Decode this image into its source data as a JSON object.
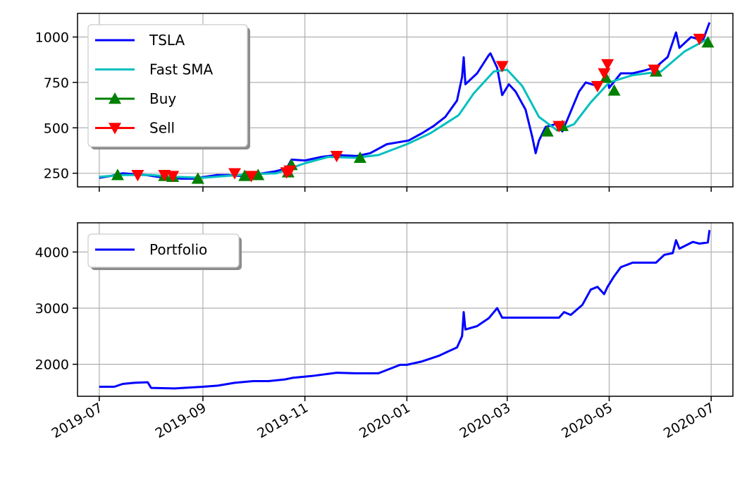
{
  "chart_data": [
    {
      "type": "line",
      "x_type": "date",
      "xlim": [
        "2019-06-18",
        "2020-07-14"
      ],
      "ylim": [
        175,
        1130
      ],
      "yticks": [
        250,
        500,
        750,
        1000
      ],
      "grid": true,
      "legend": "upper-left",
      "series": [
        {
          "name": "TSLA",
          "color": "#0000ff",
          "style": "line",
          "x": [
            "2019-07-01",
            "2019-07-08",
            "2019-07-15",
            "2019-07-22",
            "2019-07-29",
            "2019-08-05",
            "2019-08-12",
            "2019-08-19",
            "2019-08-26",
            "2019-09-02",
            "2019-09-09",
            "2019-09-16",
            "2019-09-23",
            "2019-09-30",
            "2019-10-07",
            "2019-10-14",
            "2019-10-21",
            "2019-10-24",
            "2019-11-01",
            "2019-11-11",
            "2019-11-20",
            "2019-12-02",
            "2019-12-10",
            "2019-12-20",
            "2020-01-02",
            "2020-01-10",
            "2020-01-17",
            "2020-01-24",
            "2020-01-31",
            "2020-02-03",
            "2020-02-04",
            "2020-02-05",
            "2020-02-12",
            "2020-02-19",
            "2020-02-20",
            "2020-02-24",
            "2020-02-27",
            "2020-03-02",
            "2020-03-06",
            "2020-03-12",
            "2020-03-16",
            "2020-03-18",
            "2020-03-20",
            "2020-03-24",
            "2020-03-30",
            "2020-04-03",
            "2020-04-06",
            "2020-04-13",
            "2020-04-17",
            "2020-04-24",
            "2020-04-30",
            "2020-05-01",
            "2020-05-08",
            "2020-05-15",
            "2020-05-22",
            "2020-05-29",
            "2020-06-05",
            "2020-06-10",
            "2020-06-12",
            "2020-06-19",
            "2020-06-26",
            "2020-06-30"
          ],
          "values": [
            225,
            235,
            250,
            245,
            240,
            230,
            225,
            220,
            220,
            230,
            240,
            240,
            235,
            240,
            250,
            260,
            275,
            325,
            320,
            340,
            350,
            345,
            360,
            410,
            430,
            470,
            510,
            560,
            650,
            780,
            888,
            740,
            800,
            900,
            910,
            830,
            680,
            740,
            700,
            600,
            450,
            360,
            430,
            505,
            520,
            480,
            545,
            700,
            750,
            730,
            780,
            720,
            800,
            800,
            815,
            835,
            890,
            1025,
            940,
            1000,
            980,
            1080
          ]
        },
        {
          "name": "Fast SMA",
          "color": "#00bfbf",
          "style": "line",
          "x": [
            "2019-07-01",
            "2019-07-15",
            "2019-08-01",
            "2019-08-15",
            "2019-09-01",
            "2019-09-15",
            "2019-10-01",
            "2019-10-15",
            "2019-11-01",
            "2019-11-15",
            "2019-12-01",
            "2019-12-15",
            "2020-01-01",
            "2020-01-15",
            "2020-02-01",
            "2020-02-10",
            "2020-02-22",
            "2020-03-01",
            "2020-03-10",
            "2020-03-20",
            "2020-03-31",
            "2020-04-10",
            "2020-04-20",
            "2020-05-01",
            "2020-05-15",
            "2020-06-01",
            "2020-06-15",
            "2020-06-30"
          ],
          "values": [
            230,
            240,
            240,
            230,
            225,
            235,
            245,
            250,
            305,
            340,
            335,
            350,
            410,
            470,
            570,
            690,
            810,
            820,
            730,
            560,
            485,
            520,
            640,
            750,
            790,
            810,
            920,
            995
          ]
        },
        {
          "name": "Buy",
          "color": "#008000",
          "style": "marker-triangle-up",
          "x": [
            "2019-07-12",
            "2019-08-09",
            "2019-08-14",
            "2019-08-29",
            "2019-09-26",
            "2019-10-04",
            "2019-10-22",
            "2019-10-24",
            "2019-12-04",
            "2020-03-25",
            "2020-04-03",
            "2020-04-29",
            "2020-05-04",
            "2020-05-29",
            "2020-06-29"
          ],
          "values": [
            240,
            235,
            230,
            220,
            235,
            240,
            255,
            295,
            335,
            480,
            510,
            775,
            705,
            810,
            970
          ]
        },
        {
          "name": "Sell",
          "color": "#ff0000",
          "style": "marker-triangle-down",
          "x": [
            "2019-07-24",
            "2019-08-09",
            "2019-08-14",
            "2019-09-20",
            "2019-09-30",
            "2019-10-21",
            "2019-10-23",
            "2019-11-20",
            "2020-02-27",
            "2020-04-01",
            "2020-04-24",
            "2020-04-28",
            "2020-04-30",
            "2020-05-28",
            "2020-06-24"
          ],
          "values": [
            240,
            240,
            235,
            250,
            235,
            255,
            265,
            345,
            840,
            510,
            730,
            800,
            850,
            820,
            990
          ]
        }
      ]
    },
    {
      "type": "line",
      "x_type": "date",
      "xlim": [
        "2019-06-18",
        "2020-07-14"
      ],
      "ylim": [
        1430,
        4520
      ],
      "yticks": [
        2000,
        3000,
        4000
      ],
      "xticks": [
        "2019-07",
        "2019-09",
        "2019-11",
        "2020-01",
        "2020-03",
        "2020-05",
        "2020-07"
      ],
      "grid": true,
      "legend": "upper-left",
      "series": [
        {
          "name": "Portfolio",
          "color": "#0000ff",
          "style": "line",
          "x": [
            "2019-07-01",
            "2019-07-10",
            "2019-07-15",
            "2019-07-22",
            "2019-07-30",
            "2019-08-01",
            "2019-08-15",
            "2019-09-01",
            "2019-09-10",
            "2019-09-20",
            "2019-10-01",
            "2019-10-10",
            "2019-10-20",
            "2019-10-25",
            "2019-11-05",
            "2019-11-20",
            "2019-12-01",
            "2019-12-15",
            "2019-12-28",
            "2020-01-01",
            "2020-01-10",
            "2020-01-20",
            "2020-01-31",
            "2020-02-03",
            "2020-02-04",
            "2020-02-05",
            "2020-02-12",
            "2020-02-19",
            "2020-02-24",
            "2020-02-27",
            "2020-03-10",
            "2020-03-20",
            "2020-04-01",
            "2020-04-04",
            "2020-04-08",
            "2020-04-15",
            "2020-04-20",
            "2020-04-24",
            "2020-04-28",
            "2020-04-30",
            "2020-05-04",
            "2020-05-08",
            "2020-05-15",
            "2020-05-22",
            "2020-05-29",
            "2020-06-03",
            "2020-06-08",
            "2020-06-10",
            "2020-06-12",
            "2020-06-20",
            "2020-06-24",
            "2020-06-29",
            "2020-06-30"
          ],
          "values": [
            1600,
            1600,
            1650,
            1670,
            1680,
            1580,
            1570,
            1600,
            1620,
            1670,
            1700,
            1700,
            1730,
            1760,
            1790,
            1850,
            1840,
            1840,
            1990,
            1990,
            2050,
            2150,
            2300,
            2500,
            2930,
            2620,
            2680,
            2820,
            3000,
            2830,
            2830,
            2830,
            2830,
            2930,
            2880,
            3060,
            3330,
            3380,
            3250,
            3380,
            3570,
            3730,
            3810,
            3810,
            3810,
            3950,
            3980,
            4210,
            4060,
            4180,
            4150,
            4170,
            4390
          ]
        }
      ]
    }
  ]
}
